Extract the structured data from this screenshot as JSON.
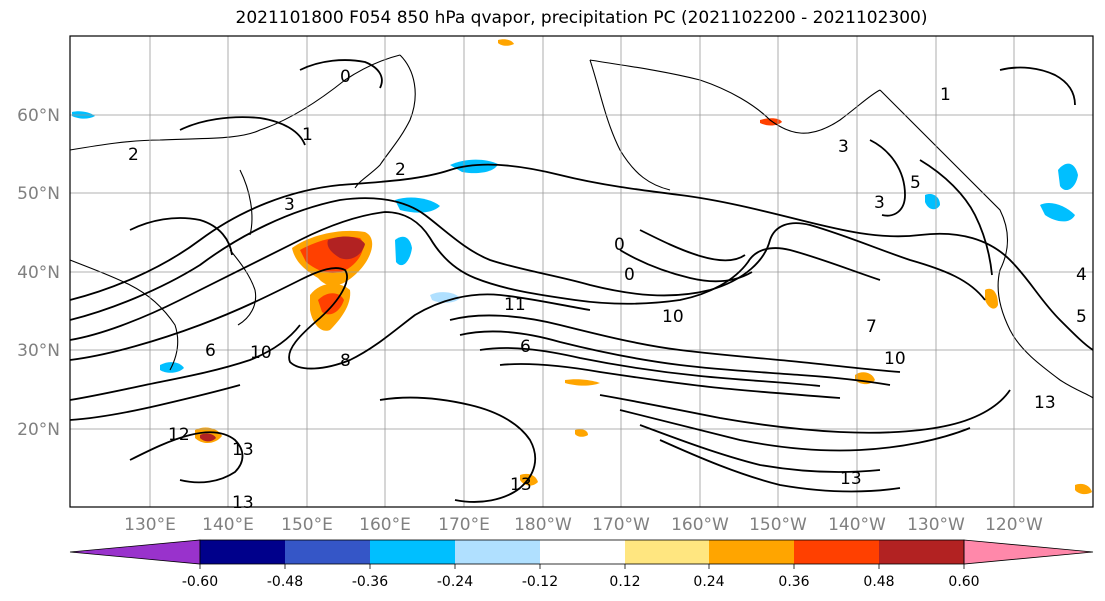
{
  "title": "2021101800 F054 850 hPa qvapor, precipitation PC (2021102200 - 2021102300)",
  "map": {
    "lat_ticks": [
      "60°N",
      "50°N",
      "40°N",
      "30°N",
      "20°N"
    ],
    "lon_ticks": [
      "130°E",
      "140°E",
      "150°E",
      "160°E",
      "170°E",
      "180°W",
      "170°W",
      "160°W",
      "150°W",
      "140°W",
      "130°W",
      "120°W"
    ],
    "contour_labels": [
      "2",
      "1",
      "0",
      "3",
      "2",
      "3",
      "3",
      "5",
      "10",
      "13",
      "12",
      "13",
      "13",
      "0",
      "0",
      "6",
      "10",
      "7",
      "10",
      "13",
      "13",
      "8",
      "4",
      "5",
      "1",
      "6",
      "11"
    ]
  },
  "colorbar": {
    "colors": [
      "#9932cc",
      "#00008b",
      "#3556c7",
      "#00bfff",
      "#b0e0ff",
      "#ffffff",
      "#ffe680",
      "#ffa500",
      "#ff4000",
      "#b22222",
      "#ff88aa"
    ],
    "tick_labels": [
      "-0.60",
      "-0.48",
      "-0.36",
      "-0.24",
      "-0.12",
      "0.12",
      "0.24",
      "0.36",
      "0.48",
      "0.60"
    ]
  }
}
